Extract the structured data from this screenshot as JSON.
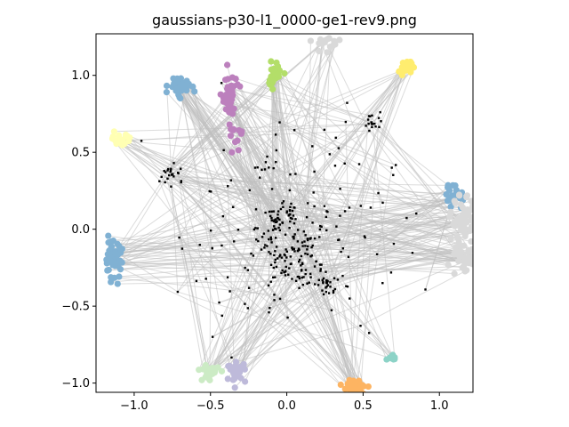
{
  "chart_data": {
    "type": "scatter",
    "title": "gaussians-p30-l1_0000-ge1-rev9.png",
    "xlabel": "",
    "ylabel": "",
    "xlim": [
      -1.25,
      1.22
    ],
    "ylim": [
      -1.06,
      1.27
    ],
    "xticks": [
      -1.0,
      -0.5,
      0.0,
      0.5,
      1.0
    ],
    "xtick_labels": [
      "−1.0",
      "−0.5",
      "0.0",
      "0.5",
      "1.0"
    ],
    "yticks": [
      -1.0,
      -0.5,
      0.0,
      0.5,
      1.0
    ],
    "ytick_labels": [
      "−1.0",
      "−0.5",
      "0.0",
      "0.5",
      "1.0"
    ],
    "grid": false,
    "legend": "none",
    "inner_centers": [
      {
        "x": -0.07,
        "y": 0.05,
        "n": 28,
        "spread": 0.04
      },
      {
        "x": 0.03,
        "y": 0.1,
        "n": 16,
        "spread": 0.03
      },
      {
        "x": -0.02,
        "y": -0.23,
        "n": 34,
        "spread": 0.05
      },
      {
        "x": 0.12,
        "y": -0.1,
        "n": 20,
        "spread": 0.04
      },
      {
        "x": 0.26,
        "y": -0.35,
        "n": 26,
        "spread": 0.04
      },
      {
        "x": 0.14,
        "y": -0.29,
        "n": 14,
        "spread": 0.04
      },
      {
        "x": -0.75,
        "y": 0.36,
        "n": 22,
        "spread": 0.04
      },
      {
        "x": 0.57,
        "y": 0.7,
        "n": 18,
        "spread": 0.03
      },
      {
        "x": -0.12,
        "y": -0.05,
        "n": 18,
        "spread": 0.05
      },
      {
        "x": 0.08,
        "y": -0.15,
        "n": 12,
        "spread": 0.05
      }
    ],
    "scatter_noise": {
      "n": 150,
      "xrange": [
        -1.1,
        1.1
      ],
      "yrange": [
        -1.0,
        1.05
      ]
    },
    "outer_clusters": [
      {
        "name": "",
        "color": "#80b1d3",
        "cx": -0.7,
        "cy": 0.93,
        "sx": 0.035,
        "sy": 0.03,
        "n": 45
      },
      {
        "name": "",
        "color": "#bc80bd",
        "cx": -0.38,
        "cy": 0.86,
        "sx": 0.025,
        "sy": 0.07,
        "n": 45
      },
      {
        "name": "",
        "color": "#b3de69",
        "cx": -0.08,
        "cy": 1.0,
        "sx": 0.025,
        "sy": 0.04,
        "n": 40
      },
      {
        "name": "",
        "color": "#ffed6f",
        "cx": 0.78,
        "cy": 1.05,
        "sx": 0.02,
        "sy": 0.02,
        "n": 22
      },
      {
        "name": "",
        "color": "#ffffb3",
        "cx": -1.08,
        "cy": 0.58,
        "sx": 0.03,
        "sy": 0.025,
        "n": 22
      },
      {
        "name": "",
        "color": "#bc80bd",
        "cx": -0.33,
        "cy": 0.62,
        "sx": 0.025,
        "sy": 0.04,
        "n": 12
      },
      {
        "name": "",
        "color": "#80b1d3",
        "cx": 1.1,
        "cy": 0.21,
        "sx": 0.03,
        "sy": 0.04,
        "n": 22
      },
      {
        "name": "",
        "color": "#d9d9d9",
        "cx": 1.16,
        "cy": 0.05,
        "sx": 0.04,
        "sy": 0.08,
        "n": 55
      },
      {
        "name": "",
        "color": "#d9d9d9",
        "cx": 1.15,
        "cy": -0.2,
        "sx": 0.05,
        "sy": 0.05,
        "n": 45
      },
      {
        "name": "",
        "color": "#80b1d3",
        "cx": -1.14,
        "cy": -0.2,
        "sx": 0.03,
        "sy": 0.06,
        "n": 50
      },
      {
        "name": "",
        "color": "#ccebc5",
        "cx": -0.5,
        "cy": -0.92,
        "sx": 0.035,
        "sy": 0.025,
        "n": 28
      },
      {
        "name": "",
        "color": "#bebada",
        "cx": -0.33,
        "cy": -0.93,
        "sx": 0.03,
        "sy": 0.03,
        "n": 26
      },
      {
        "name": "",
        "color": "#fdb462",
        "cx": 0.45,
        "cy": -1.03,
        "sx": 0.04,
        "sy": 0.025,
        "n": 40
      },
      {
        "name": "",
        "color": "#8dd3c7",
        "cx": 0.69,
        "cy": -0.82,
        "sx": 0.015,
        "sy": 0.015,
        "n": 10
      },
      {
        "name": "",
        "color": "#d9d9d9",
        "cx": 0.27,
        "cy": 1.19,
        "sx": 0.06,
        "sy": 0.04,
        "n": 18
      }
    ],
    "link_color": "#c0c0c0",
    "inner_color": "#000000"
  }
}
